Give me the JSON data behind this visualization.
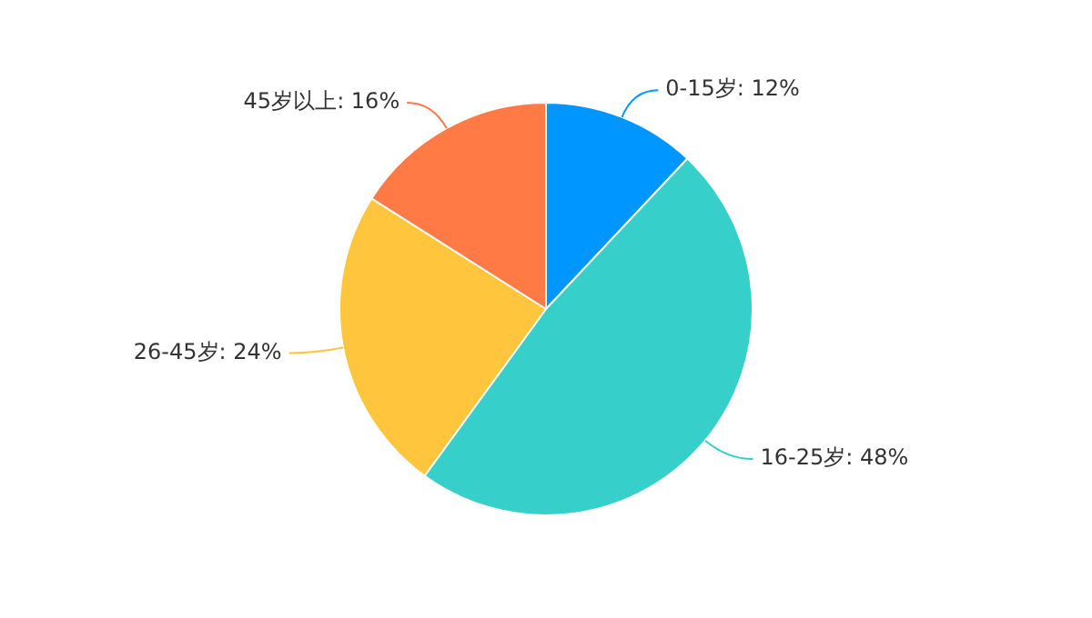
{
  "chart_data": {
    "type": "pie",
    "categories": [
      "0-15岁",
      "16-25岁",
      "26-45岁",
      "45岁以上"
    ],
    "values": [
      12,
      48,
      24,
      16
    ],
    "value_labels": [
      "12%",
      "48%",
      "24%",
      "16%"
    ],
    "colors": [
      "#0096ff",
      "#36cfc9",
      "#ffc53d",
      "#ff7a45"
    ],
    "legend": false
  }
}
